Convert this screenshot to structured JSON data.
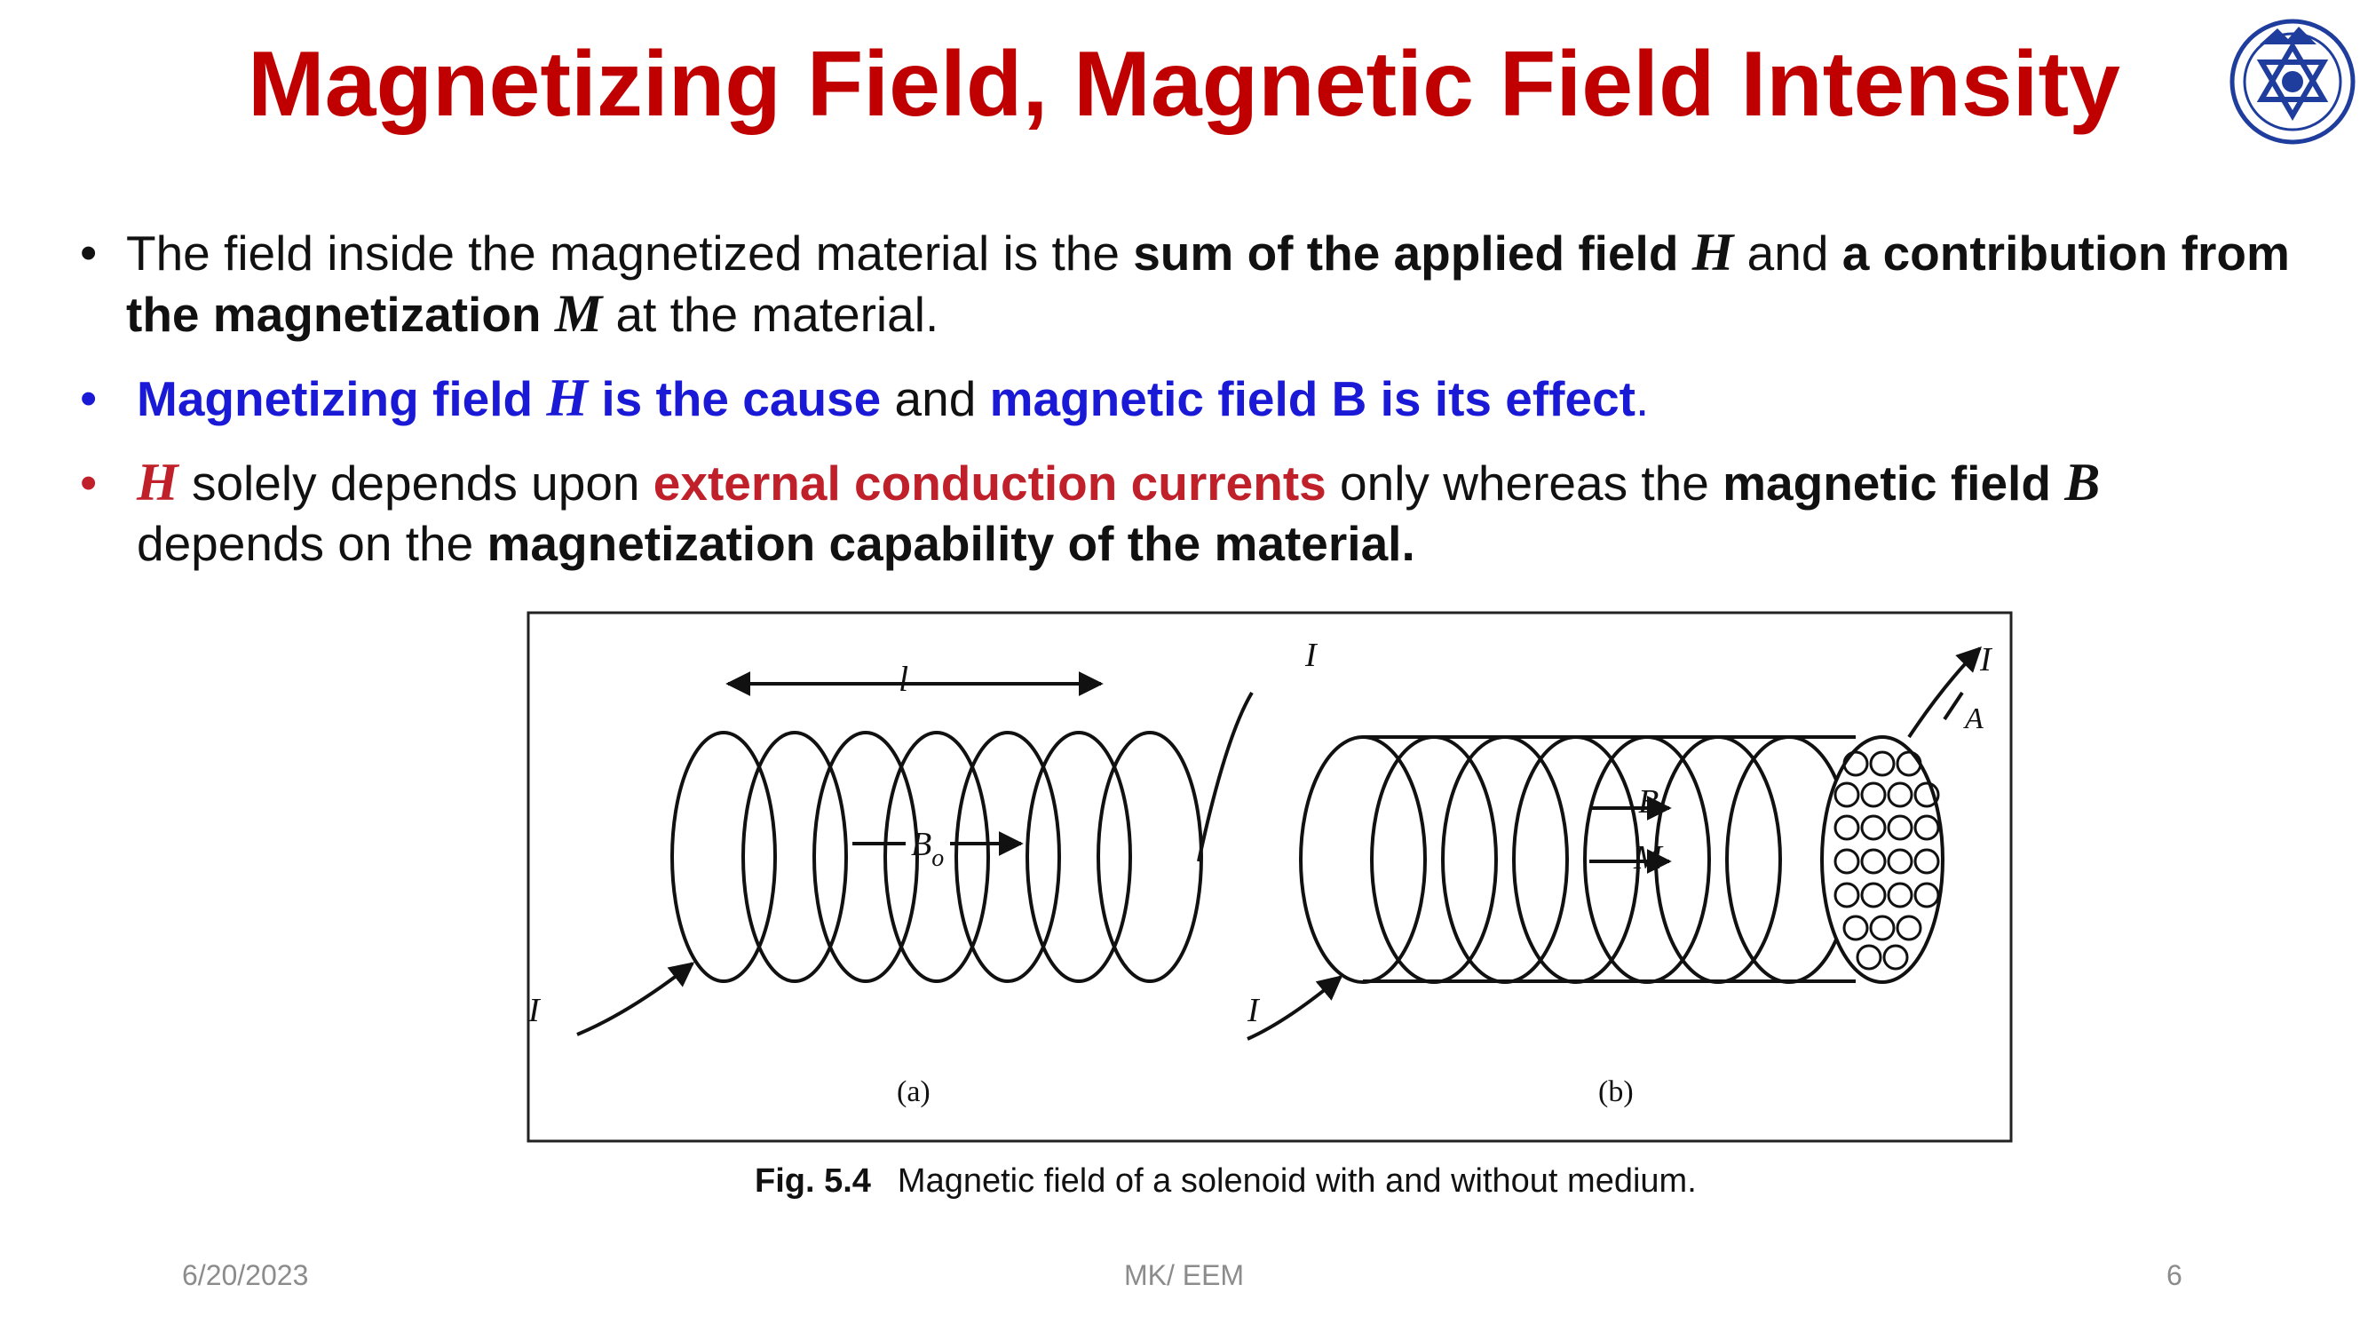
{
  "slide": {
    "title": "Magnetizing Field, Magnetic Field Intensity"
  },
  "bullets": [
    {
      "marker": "•",
      "parts": [
        "The field inside the magnetized material is the ",
        "sum of the applied field ",
        "H",
        " and ",
        "a contribution from the magnetization ",
        "M",
        " at the material."
      ]
    },
    {
      "marker": "•",
      "parts": [
        "Magnetizing field ",
        "H",
        " is the cause",
        " and ",
        "magnetic field B is its effect",
        "."
      ]
    },
    {
      "marker": "•",
      "parts": [
        "H",
        " solely depends upon ",
        "external conduction currents",
        " only whereas the ",
        "magnetic field ",
        "B",
        " depends on the ",
        "magnetization capability of the material."
      ]
    }
  ],
  "figure": {
    "length_label": "l",
    "current_label": "I",
    "field_label_a_main": "B",
    "field_label_a_sub": "o",
    "field_label_b": "B",
    "magnetization_label": "M",
    "area_label": "A",
    "label_a": "(a)",
    "label_b": "(b)",
    "caption_num": "Fig. 5.4",
    "caption_text": "Magnetic field of a solenoid with and without medium."
  },
  "footer": {
    "date": "6/20/2023",
    "center": "MK/ EEM",
    "page": "6"
  },
  "colors": {
    "title": "#c00000",
    "accent_blue": "#1a1ad6",
    "accent_red": "#c0202a",
    "footer_text": "#8c8c8c"
  },
  "icons": [
    "college-emblem-icon"
  ]
}
